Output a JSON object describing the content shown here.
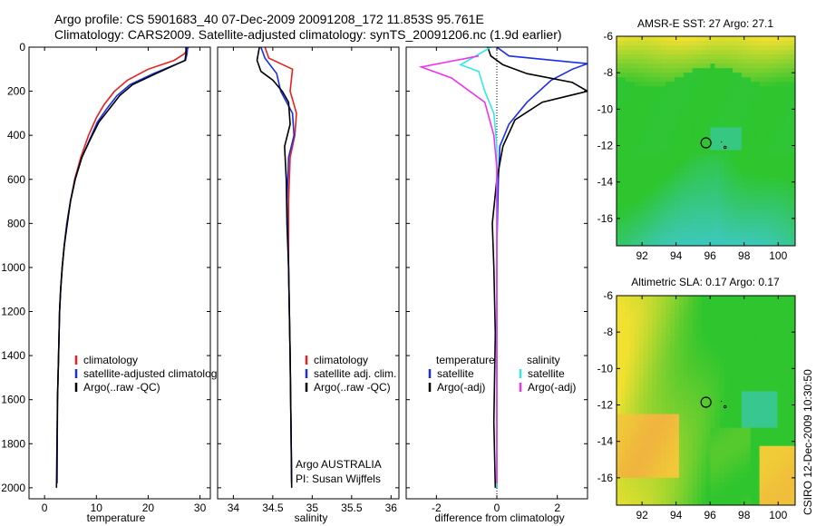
{
  "title": {
    "line1": "Argo profile: CS 5901683_40 07-Dec-2009 20091208_172 11.853S 95.761E",
    "line2": "Climatology: CARS2009. Satellite-adjusted climatology: synTS_20091206.nc (1.9d earlier)"
  },
  "credit": "CSIRO 12-Dec-2009 10:30:50",
  "colors": {
    "climatology": "#e8201c",
    "satellite": "#1a2ee8",
    "argo": "#000000",
    "salinity_satellite": "#33e8e8",
    "salinity_argo": "#ee33ee",
    "map_green": "#2ec52e",
    "map_yellow": "#f0e030",
    "map_cyan": "#3cc8b8",
    "map_orange": "#f0b040"
  },
  "chart_data": [
    {
      "type": "line",
      "panel": "temperature",
      "xlabel": "temperature",
      "ylabel": "",
      "xlim": [
        -3,
        32
      ],
      "ylim": [
        2050,
        0
      ],
      "xticks": [
        "0",
        "10",
        "20",
        "30"
      ],
      "yticks": [
        "0",
        "200",
        "400",
        "600",
        "800",
        "1000",
        "1200",
        "1400",
        "1600",
        "1800",
        "2000"
      ],
      "legend": [
        "climatology",
        "satellite-adjusted climatolog",
        "Argo(..raw -QC)"
      ],
      "series": [
        {
          "name": "climatology",
          "x": [
            27.8,
            27.0,
            25.0,
            20.0,
            16.0,
            13.5,
            11.5,
            10.0,
            8.5,
            7.0,
            5.8,
            5.0,
            4.3,
            3.8,
            3.4,
            3.1,
            2.9,
            2.7,
            2.5,
            2.4
          ],
          "y": [
            0,
            30,
            60,
            100,
            150,
            200,
            260,
            320,
            400,
            500,
            600,
            700,
            800,
            900,
            1000,
            1100,
            1200,
            1400,
            1600,
            1980
          ]
        },
        {
          "name": "satellite-adjusted climatology",
          "x": [
            27.6,
            27.5,
            27.2,
            21.0,
            16.5,
            14.0,
            12.0,
            10.2,
            8.7,
            7.2,
            5.9,
            5.0,
            4.3,
            3.8,
            3.4,
            3.1,
            2.9,
            2.7,
            2.5,
            2.4
          ],
          "y": [
            0,
            30,
            60,
            120,
            170,
            220,
            280,
            340,
            420,
            500,
            600,
            700,
            800,
            900,
            1000,
            1100,
            1200,
            1400,
            1600,
            1980
          ]
        },
        {
          "name": "Argo(..raw -QC)",
          "x": [
            27.3,
            27.3,
            27.1,
            21.5,
            17.0,
            14.5,
            12.5,
            10.5,
            8.8,
            7.2,
            5.9,
            5.0,
            4.4,
            3.8,
            3.4,
            3.1,
            2.9,
            2.7,
            2.5,
            2.3
          ],
          "y": [
            0,
            30,
            60,
            120,
            170,
            220,
            280,
            340,
            420,
            500,
            600,
            700,
            800,
            900,
            1000,
            1100,
            1200,
            1400,
            1600,
            2000
          ]
        }
      ]
    },
    {
      "type": "line",
      "panel": "salinity",
      "xlabel": "salinity",
      "ylabel": "",
      "xlim": [
        33.8,
        36.1
      ],
      "ylim": [
        2050,
        0
      ],
      "xticks": [
        "34",
        "34.5",
        "35",
        "35.5",
        "36"
      ],
      "legend": [
        "climatology",
        "satellite adj. clim.",
        "Argo(..raw -QC)"
      ],
      "annotations": [
        "Argo AUSTRALIA",
        "PI: Susan Wijffels"
      ],
      "series": [
        {
          "name": "climatology",
          "x": [
            34.4,
            34.45,
            34.75,
            34.72,
            34.8,
            34.78,
            34.72,
            34.7,
            34.7,
            34.72,
            34.73,
            34.74
          ],
          "y": [
            0,
            50,
            100,
            200,
            300,
            400,
            500,
            700,
            1000,
            1400,
            1700,
            1980
          ]
        },
        {
          "name": "satellite adj. clim.",
          "x": [
            34.35,
            34.4,
            34.55,
            34.6,
            34.75,
            34.77,
            34.7,
            34.68,
            34.7,
            34.72,
            34.73,
            34.74
          ],
          "y": [
            0,
            50,
            120,
            200,
            300,
            400,
            500,
            700,
            1000,
            1400,
            1700,
            1980
          ]
        },
        {
          "name": "Argo(..raw -QC)",
          "x": [
            34.33,
            34.3,
            34.35,
            34.5,
            34.62,
            34.7,
            34.72,
            34.65,
            34.67,
            34.68,
            34.7,
            34.72,
            34.73,
            34.74
          ],
          "y": [
            0,
            60,
            110,
            150,
            200,
            250,
            350,
            450,
            600,
            800,
            1000,
            1400,
            1700,
            2000
          ]
        }
      ]
    },
    {
      "type": "line",
      "panel": "difference",
      "xlabel": "difference from climatology",
      "ylabel": "",
      "xlim": [
        -3,
        3
      ],
      "ylim": [
        2050,
        0
      ],
      "xticks": [
        "-2",
        "0",
        "2"
      ],
      "legend": [
        "temperature",
        "satellite",
        "Argo(-adj)",
        "salinity",
        "satellite",
        "Argo(-adj)"
      ],
      "series": [
        {
          "name": "temperature satellite",
          "x": [
            0.0,
            0.4,
            3.0,
            2.5,
            1.8,
            1.0,
            0.4,
            0.1,
            0.05,
            0.0,
            0.0,
            0.0
          ],
          "y": [
            0,
            40,
            75,
            100,
            150,
            250,
            350,
            450,
            600,
            900,
            1400,
            2000
          ]
        },
        {
          "name": "temperature Argo(-adj)",
          "x": [
            -0.3,
            -0.2,
            0.2,
            1.0,
            2.5,
            3.0,
            1.5,
            0.6,
            0.2,
            0.0,
            -0.15,
            -0.1,
            -0.05,
            -0.1,
            -0.05
          ],
          "y": [
            0,
            40,
            80,
            120,
            160,
            200,
            250,
            330,
            450,
            600,
            800,
            1000,
            1300,
            1700,
            2000
          ]
        },
        {
          "name": "salinity satellite",
          "x": [
            -0.2,
            -1.2,
            -0.6,
            -0.4,
            -0.1,
            0.0,
            0.0,
            0.0,
            0.0,
            0.0,
            0.0
          ],
          "y": [
            0,
            80,
            110,
            200,
            300,
            450,
            600,
            900,
            1300,
            1700,
            2000
          ]
        },
        {
          "name": "salinity Argo(-adj)",
          "x": [
            -0.6,
            -2.5,
            -1.5,
            -0.4,
            -0.1,
            0.0,
            0.0,
            0.0,
            0.0,
            0.0,
            0.0
          ],
          "y": [
            40,
            90,
            140,
            250,
            400,
            550,
            700,
            1000,
            1400,
            1700,
            1980
          ]
        }
      ]
    },
    {
      "type": "heatmap",
      "panel": "sst-map",
      "title": "AMSR-E SST: 27 Argo: 27.1",
      "xlim": [
        90.5,
        101
      ],
      "ylim": [
        -17.5,
        -6
      ],
      "xticks": [
        "92",
        "94",
        "96",
        "98",
        "100"
      ],
      "yticks": [
        "-6",
        "-8",
        "-10",
        "-12",
        "-14",
        "-16"
      ],
      "argo_position": {
        "lon": 95.76,
        "lat": -11.85
      }
    },
    {
      "type": "heatmap",
      "panel": "sla-map",
      "title": "Altimetric SLA: 0.17 Argo: 0.17",
      "xlim": [
        90.5,
        101
      ],
      "ylim": [
        -17.5,
        -6
      ],
      "xticks": [
        "92",
        "94",
        "96",
        "98",
        "100"
      ],
      "yticks": [
        "-6",
        "-8",
        "-10",
        "-12",
        "-14",
        "-16"
      ],
      "argo_position": {
        "lon": 95.76,
        "lat": -11.85
      }
    }
  ]
}
